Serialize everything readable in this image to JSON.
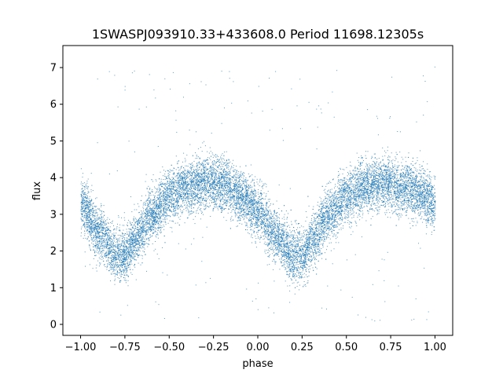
{
  "chart_data": {
    "type": "scatter",
    "title": "1SWASPJ093910.33+433608.0 Period 11698.12305s",
    "xlabel": "phase",
    "ylabel": "flux",
    "xlim": [
      -1.1,
      1.1
    ],
    "ylim": [
      -0.3,
      7.6
    ],
    "x_ticks": [
      -1.0,
      -0.75,
      -0.5,
      -0.25,
      0.0,
      0.25,
      0.5,
      0.75,
      1.0
    ],
    "x_tick_labels": [
      "−1.00",
      "−0.75",
      "−0.50",
      "−0.25",
      "0.00",
      "0.25",
      "0.50",
      "0.75",
      "1.00"
    ],
    "y_ticks": [
      0,
      1,
      2,
      3,
      4,
      5,
      6,
      7
    ],
    "y_tick_labels": [
      "0",
      "1",
      "2",
      "3",
      "4",
      "5",
      "6",
      "7"
    ],
    "marker_color": "#1f77b4",
    "grid": false,
    "light_curve_trend": {
      "phase": [
        -1.0,
        -0.9,
        -0.8,
        -0.75,
        -0.7,
        -0.6,
        -0.5,
        -0.4,
        -0.3,
        -0.25,
        -0.2,
        -0.1,
        0.0,
        0.1,
        0.2,
        0.25,
        0.3,
        0.4,
        0.5,
        0.6,
        0.7,
        0.75,
        0.8,
        0.9,
        1.0
      ],
      "flux": [
        3.3,
        2.5,
        1.9,
        1.9,
        2.3,
        3.0,
        3.5,
        3.75,
        3.85,
        3.85,
        3.8,
        3.5,
        3.1,
        2.4,
        1.85,
        1.9,
        2.3,
        3.0,
        3.5,
        3.75,
        3.85,
        3.85,
        3.75,
        3.6,
        3.3
      ]
    },
    "scatter_sigma": 0.35,
    "n_points": 14000,
    "n_outliers": 220
  }
}
